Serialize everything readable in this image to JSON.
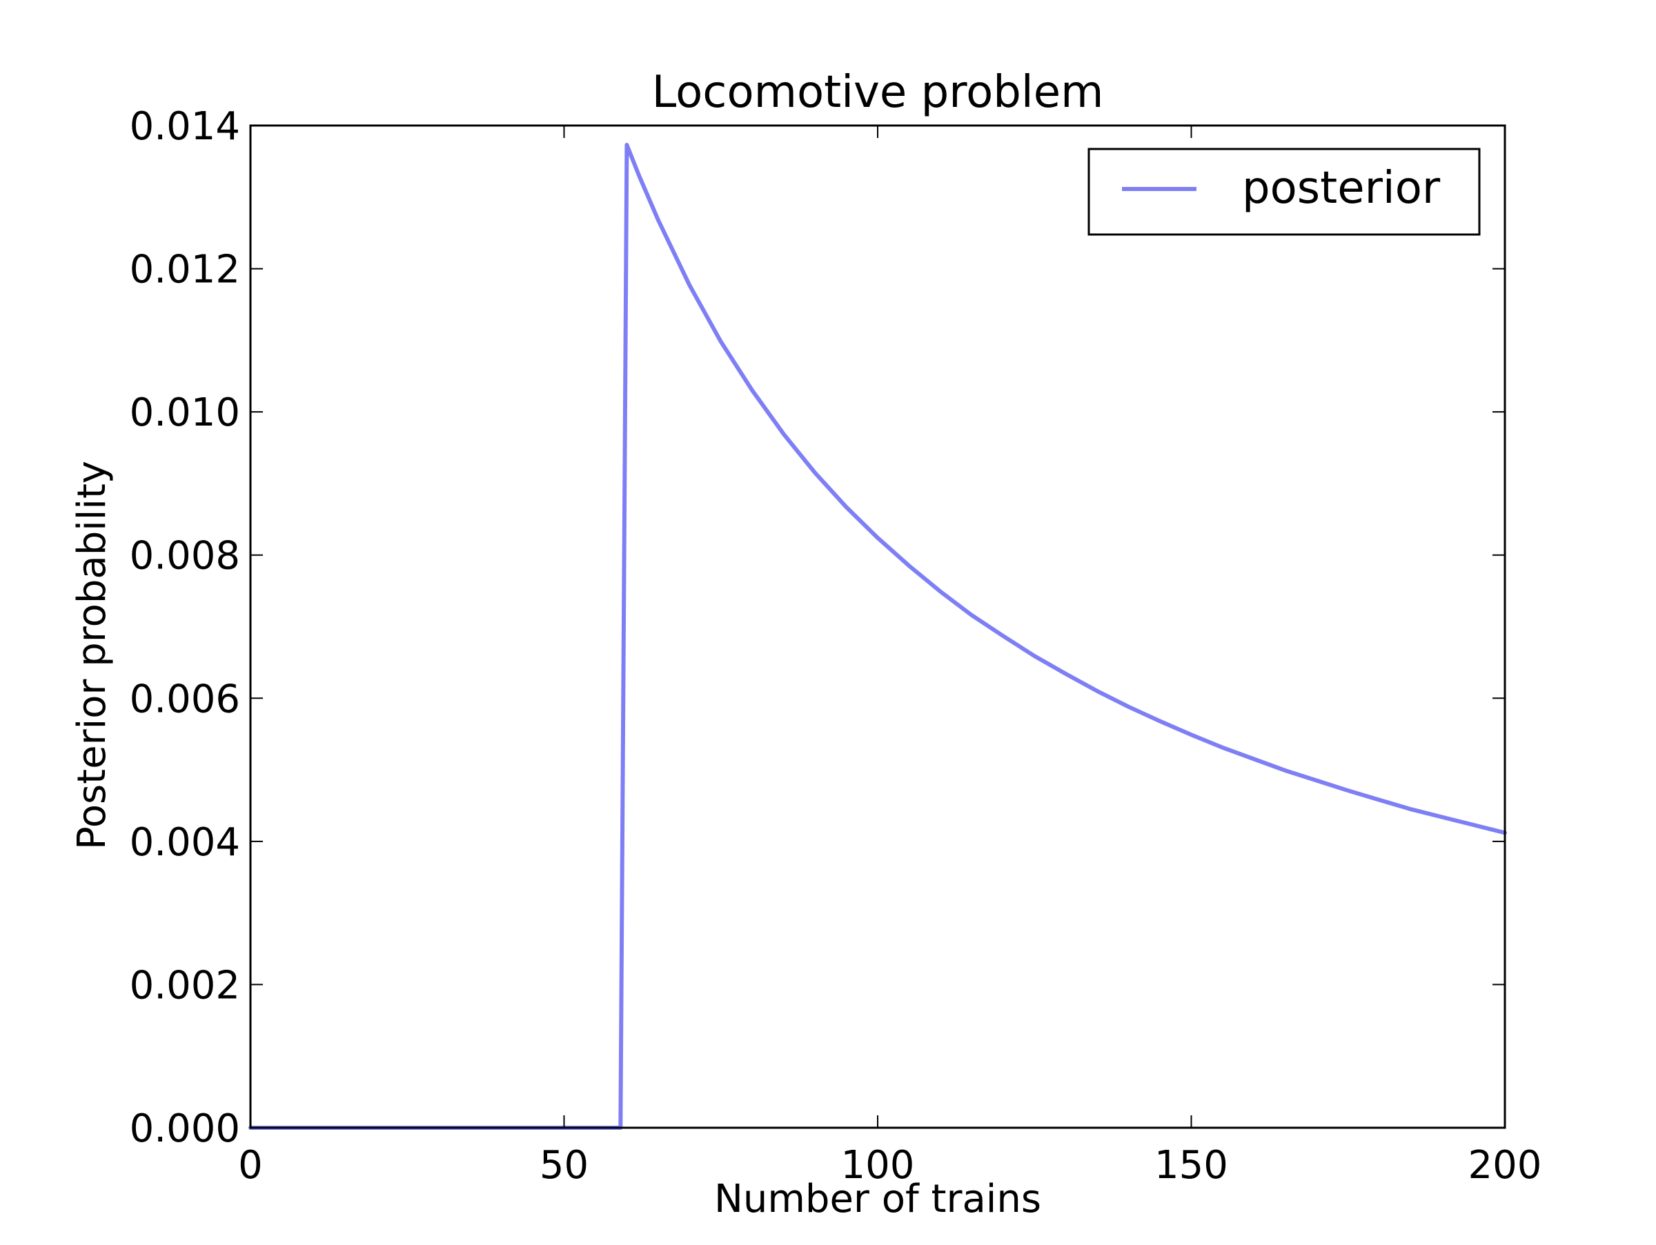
{
  "chart_data": {
    "type": "line",
    "title": "Locomotive problem",
    "xlabel": "Number of trains",
    "ylabel": "Posterior probability",
    "xlim": [
      0,
      200
    ],
    "ylim": [
      0,
      0.014
    ],
    "xticks": [
      0,
      50,
      100,
      150,
      200
    ],
    "xtick_labels": [
      "0",
      "50",
      "100",
      "150",
      "200"
    ],
    "yticks": [
      0,
      0.002,
      0.004,
      0.006,
      0.008,
      0.01,
      0.012,
      0.014
    ],
    "ytick_labels": [
      "0.000",
      "0.002",
      "0.004",
      "0.006",
      "0.008",
      "0.010",
      "0.012",
      "0.014"
    ],
    "grid": false,
    "legend_position": "top-right",
    "series": [
      {
        "name": "posterior",
        "color": "#7f7ff5",
        "x": [
          0,
          59,
          60,
          62,
          65,
          70,
          75,
          80,
          85,
          90,
          95,
          100,
          105,
          110,
          115,
          120,
          125,
          130,
          135,
          140,
          145,
          150,
          155,
          160,
          165,
          170,
          175,
          180,
          185,
          190,
          195,
          200
        ],
        "y": [
          0,
          0,
          0.01373,
          0.01329,
          0.01268,
          0.01177,
          0.01098,
          0.0103,
          0.00969,
          0.00915,
          0.00867,
          0.00824,
          0.00785,
          0.00749,
          0.00716,
          0.00687,
          0.00659,
          0.00634,
          0.0061,
          0.00588,
          0.00568,
          0.00549,
          0.00531,
          0.00515,
          0.00499,
          0.00485,
          0.00471,
          0.00458,
          0.00445,
          0.00434,
          0.00423,
          0.00412
        ]
      }
    ]
  }
}
